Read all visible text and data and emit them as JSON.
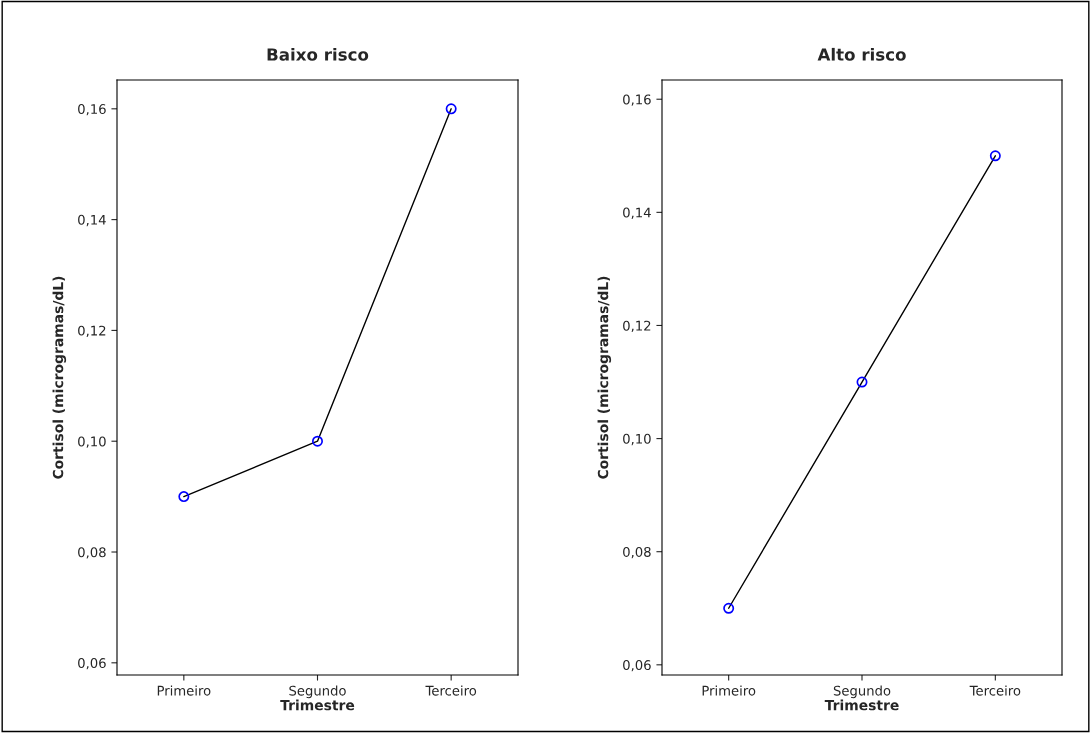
{
  "chart_data": [
    {
      "type": "line",
      "title": "Baixo risco",
      "xlabel": "Trimestre",
      "ylabel": "Cortisol (microgramas/dL)",
      "categories": [
        "Primeiro",
        "Segundo",
        "Terceiro"
      ],
      "series": [
        {
          "color": "#0000ff",
          "values": [
            0.09,
            0.1,
            0.16
          ]
        }
      ],
      "ylim": [
        0.0578,
        0.1652
      ],
      "yticks": [
        {
          "value": 0.06,
          "label": "0,06"
        },
        {
          "value": 0.08,
          "label": "0,08"
        },
        {
          "value": 0.1,
          "label": "0,10"
        },
        {
          "value": 0.12,
          "label": "0,12"
        },
        {
          "value": 0.14,
          "label": "0,14"
        },
        {
          "value": 0.16,
          "label": "0,16"
        }
      ],
      "marker": "circle",
      "line_style": "solid",
      "grid": false,
      "legend": false
    },
    {
      "type": "line",
      "title": "Alto risco",
      "xlabel": "Trimestre",
      "ylabel": "Cortisol (microgramas/dL)",
      "categories": [
        "Primeiro",
        "Segundo",
        "Terceiro"
      ],
      "series": [
        {
          "color": "#0000ff",
          "values": [
            0.07,
            0.11,
            0.15
          ]
        }
      ],
      "ylim": [
        0.0582,
        0.1634
      ],
      "yticks": [
        {
          "value": 0.06,
          "label": "0,06"
        },
        {
          "value": 0.08,
          "label": "0,08"
        },
        {
          "value": 0.1,
          "label": "0,10"
        },
        {
          "value": 0.12,
          "label": "0,12"
        },
        {
          "value": 0.14,
          "label": "0,14"
        },
        {
          "value": 0.16,
          "label": "0,16"
        }
      ],
      "marker": "circle",
      "line_style": "solid",
      "grid": false,
      "legend": false
    }
  ]
}
